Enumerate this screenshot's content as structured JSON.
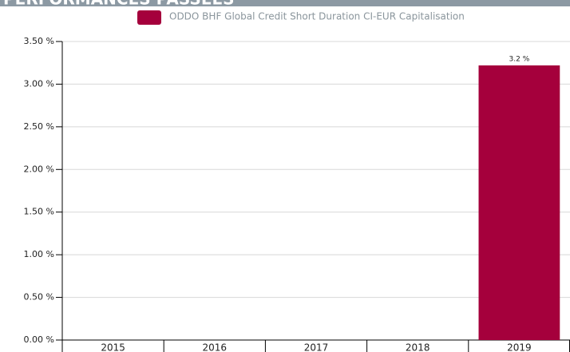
{
  "header": {
    "title": "PERFORMANCES PASSÉES"
  },
  "chart_data": {
    "type": "bar",
    "categories": [
      "2015",
      "2016",
      "2017",
      "2018",
      "2019"
    ],
    "series": [
      {
        "name": "ODDO BHF Global Credit Short Duration CI-EUR Capitalisation",
        "color": "#a5003c",
        "values": [
          null,
          null,
          null,
          null,
          3.22
        ],
        "value_labels": [
          null,
          null,
          null,
          null,
          "3.2 %"
        ]
      }
    ],
    "ylim": [
      0,
      3.5
    ],
    "yticks": [
      {
        "value": 0,
        "label": "0.00 %"
      },
      {
        "value": 0.5,
        "label": "0.50 %"
      },
      {
        "value": 1,
        "label": "1.00 %"
      },
      {
        "value": 1.5,
        "label": "1.50 %"
      },
      {
        "value": 2,
        "label": "2.00 %"
      },
      {
        "value": 2.5,
        "label": "2.50 %"
      },
      {
        "value": 3,
        "label": "3.00 %"
      },
      {
        "value": 3.5,
        "label": "3.50 %"
      }
    ],
    "grid": true,
    "legend": "top"
  }
}
